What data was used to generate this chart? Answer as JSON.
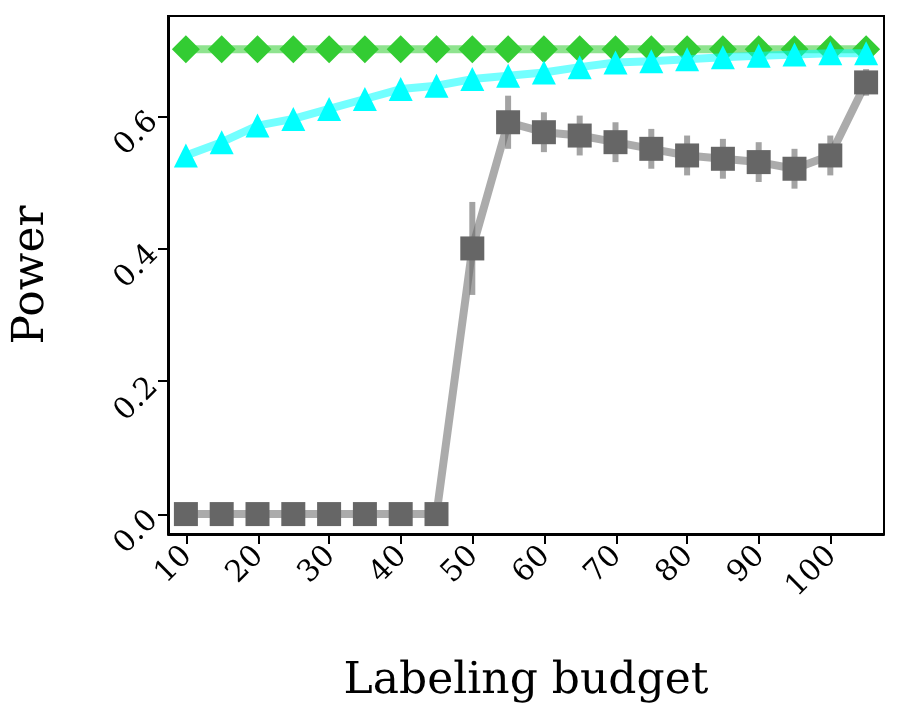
{
  "chart_data": {
    "type": "line",
    "xlabel": "Labeling budget",
    "ylabel": "Power",
    "x": [
      10,
      15,
      20,
      25,
      30,
      35,
      40,
      45,
      50,
      55,
      60,
      65,
      70,
      75,
      80,
      85,
      90,
      95,
      100,
      105
    ],
    "xlim": [
      7.5,
      107.5
    ],
    "xticks": [
      10,
      20,
      30,
      40,
      50,
      60,
      70,
      80,
      90,
      100
    ],
    "ylim": [
      -0.03,
      0.75
    ],
    "yticks": [
      {
        "value": 0,
        "label": "0.0"
      },
      0.2,
      0.4,
      0.6
    ],
    "grid": false,
    "line_style": "solid",
    "series": [
      {
        "color": "#33cc33",
        "marker": "diamond",
        "values": [
          0.7,
          0.7,
          0.7,
          0.7,
          0.7,
          0.7,
          0.7,
          0.7,
          0.7,
          0.7,
          0.7,
          0.7,
          0.7,
          0.7,
          0.7,
          0.7,
          0.7,
          0.7,
          0.7,
          0.7
        ]
      },
      {
        "color": "#00ffff",
        "marker": "triangle",
        "values": [
          0.54,
          0.56,
          0.585,
          0.595,
          0.61,
          0.625,
          0.64,
          0.645,
          0.655,
          0.66,
          0.665,
          0.673,
          0.68,
          0.682,
          0.685,
          0.688,
          0.69,
          0.692,
          0.694,
          0.694
        ]
      },
      {
        "color": "#666666",
        "marker": "square",
        "values": [
          0,
          0,
          0,
          0,
          0,
          0,
          0,
          0,
          0.4,
          0.59,
          0.575,
          0.57,
          0.56,
          0.55,
          0.54,
          0.535,
          0.53,
          0.52,
          0.54,
          0.65
        ],
        "errors": [
          null,
          null,
          null,
          null,
          null,
          null,
          null,
          null,
          [
            0.33,
            0.47
          ],
          0.04,
          0.03,
          0.03,
          0.03,
          0.03,
          0.03,
          0.03,
          0.03,
          0.03,
          0.03,
          0.02
        ]
      }
    ]
  }
}
